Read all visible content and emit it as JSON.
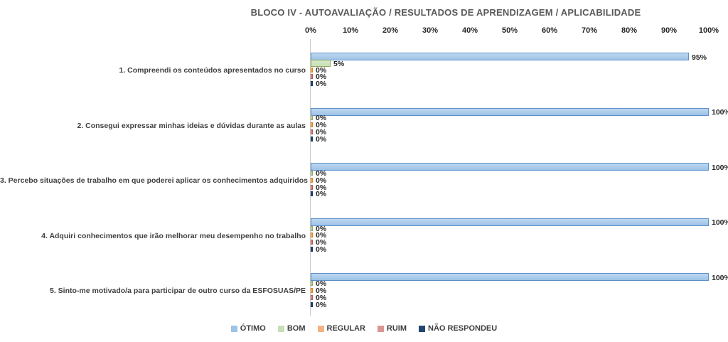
{
  "chart_data": {
    "type": "bar",
    "orientation": "horizontal",
    "title": "BLOCO IV - AUTOAVALIAÇÃO / RESULTADOS DE APRENDIZAGEM / APLICABILIDADE",
    "categories": [
      "1. Compreendi os conteúdos apresentados no curso",
      "2. Consegui expressar minhas ideias e dúvidas durante as aulas",
      "3. Percebo situações de trabalho em que poderei aplicar os conhecimentos adquiridos",
      "4. Adquiri conhecimentos que irão melhorar meu desempenho no trabalho",
      "5. Sinto-me motivado/a para participar de outro curso da ESFOSUAS/PE"
    ],
    "series": [
      {
        "name": "ÓTIMO",
        "values": [
          95,
          100,
          100,
          100,
          100
        ],
        "fill": "#9dc3e6",
        "fill_light": "#bdd7f1",
        "border": "#5e8fc9"
      },
      {
        "name": "BOM",
        "values": [
          5,
          0,
          0,
          0,
          0
        ],
        "fill": "#c5e0b4",
        "fill_light": "#d9eac9",
        "border": "#8ca861"
      },
      {
        "name": "REGULAR",
        "values": [
          0,
          0,
          0,
          0,
          0
        ],
        "fill": "#f4b183",
        "fill_light": "#f8c9a4",
        "border": "#e08214"
      },
      {
        "name": "RUIM",
        "values": [
          0,
          0,
          0,
          0,
          0
        ],
        "fill": "#d99694",
        "fill_light": "#e5b3b1",
        "border": "#b75653"
      },
      {
        "name": "NÃO RESPONDEU",
        "values": [
          0,
          0,
          0,
          0,
          0
        ],
        "fill": "#24466e",
        "fill_light": "#2f5788",
        "border": "#17375e"
      }
    ],
    "x_axis": {
      "min": 0,
      "max": 100,
      "ticks": [
        "0%",
        "10%",
        "20%",
        "30%",
        "40%",
        "50%",
        "60%",
        "70%",
        "80%",
        "90%",
        "100%"
      ]
    },
    "data_label_format": "{v}%",
    "legend_position": "bottom",
    "grid": false
  },
  "colors": {
    "title_text": "#595959",
    "axis_line": "#c9c9c9",
    "label_text": "#3f3f3f",
    "background": "#ffffff"
  }
}
